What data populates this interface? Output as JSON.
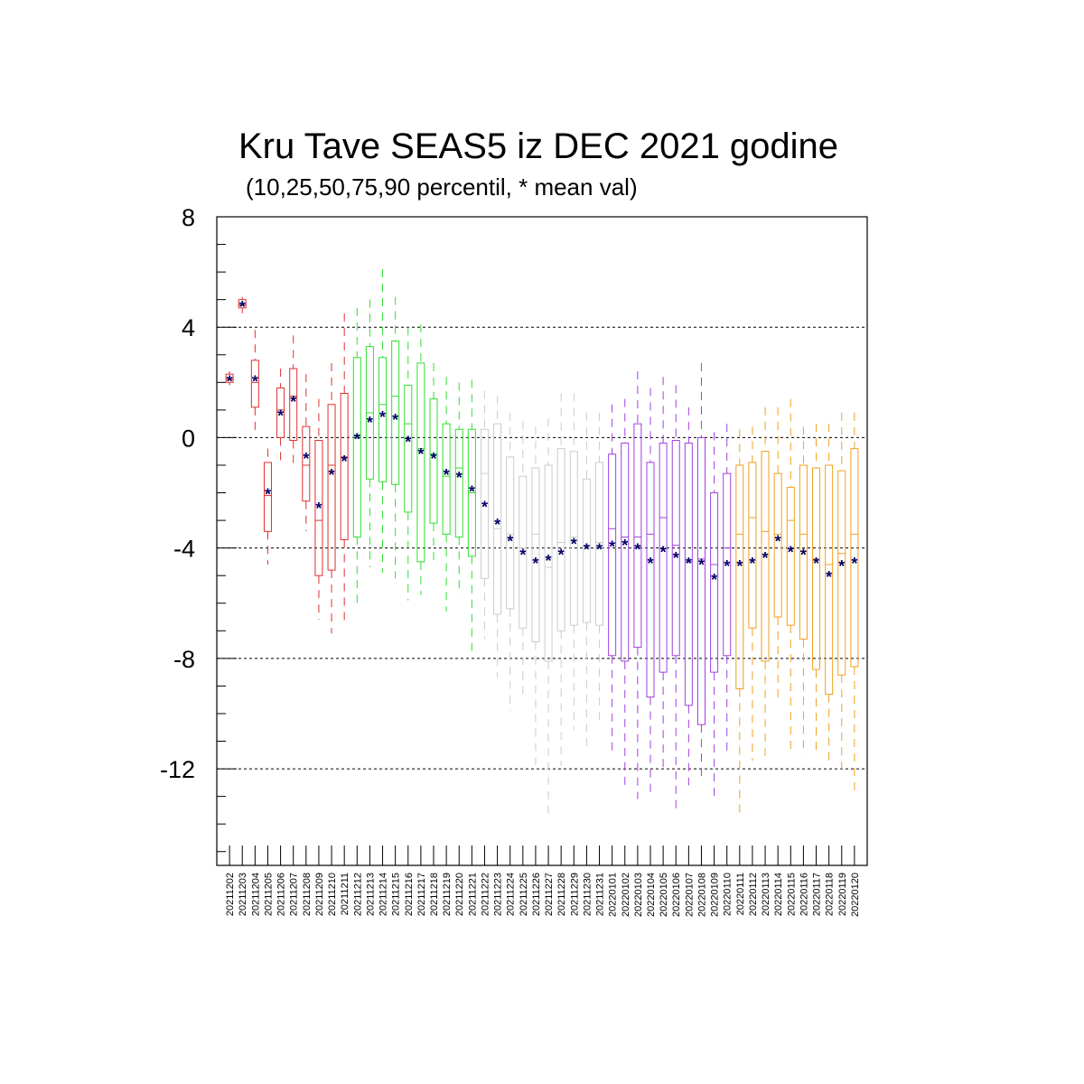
{
  "chart_data": {
    "type": "box",
    "title": "Kru Tave SEAS5 iz DEC 2021 godine",
    "subtitle": "(10,25,50,75,90 percentil, * mean val)",
    "ylim": [
      -15.5,
      8
    ],
    "yticks": [
      {
        "value": 8,
        "label": "8"
      },
      {
        "value": 4,
        "label": "4"
      },
      {
        "value": 0,
        "label": "0"
      },
      {
        "value": -4,
        "label": "-4"
      },
      {
        "value": -8,
        "label": "-8"
      },
      {
        "value": -12,
        "label": "-12"
      }
    ],
    "grid_y": [
      8,
      4,
      0,
      -4,
      -8,
      -12
    ],
    "colors": {
      "red": "#e03030",
      "green": "#33dd33",
      "gray": "#cccccc",
      "purple": "#a040e0",
      "orange": "#f0a020",
      "mean": "#000066"
    },
    "series": [
      {
        "x": "20211202",
        "color": "red",
        "p10": 1.9,
        "p25": 2.0,
        "p50": 2.1,
        "p75": 2.3,
        "p90": 2.4,
        "mean": 2.1
      },
      {
        "x": "20211203",
        "color": "red",
        "p10": 4.5,
        "p25": 4.7,
        "p50": 4.8,
        "p75": 5.0,
        "p90": 5.1,
        "mean": 4.8
      },
      {
        "x": "20211204",
        "color": "red",
        "p10": 0.1,
        "p25": 1.1,
        "p50": 2.0,
        "p75": 2.8,
        "p90": 3.9,
        "mean": 2.1
      },
      {
        "x": "20211205",
        "color": "red",
        "p10": -4.6,
        "p25": -3.4,
        "p50": -2.1,
        "p75": -0.9,
        "p90": -0.4,
        "mean": -2.0
      },
      {
        "x": "20211206",
        "color": "red",
        "p10": -0.9,
        "p25": 0.0,
        "p50": 1.0,
        "p75": 1.8,
        "p90": 2.5,
        "mean": 0.85
      },
      {
        "x": "20211207",
        "color": "red",
        "p10": -1.1,
        "p25": -0.1,
        "p50": 1.5,
        "p75": 2.5,
        "p90": 3.7,
        "mean": 1.35
      },
      {
        "x": "20211208",
        "color": "red",
        "p10": -3.4,
        "p25": -2.3,
        "p50": -1.0,
        "p75": 0.4,
        "p90": 2.3,
        "mean": -0.7
      },
      {
        "x": "20211209",
        "color": "red",
        "p10": -6.6,
        "p25": -5.0,
        "p50": -3.0,
        "p75": -0.1,
        "p90": 1.4,
        "mean": -2.5
      },
      {
        "x": "20211210",
        "color": "red",
        "p10": -7.1,
        "p25": -4.8,
        "p50": -1.0,
        "p75": 1.2,
        "p90": 2.7,
        "mean": -1.3
      },
      {
        "x": "20211211",
        "color": "red",
        "p10": -6.8,
        "p25": -3.7,
        "p50": -0.7,
        "p75": 1.6,
        "p90": 4.5,
        "mean": -0.8
      },
      {
        "x": "20211212",
        "color": "green",
        "p10": -6.0,
        "p25": -3.6,
        "p50": 0.1,
        "p75": 2.9,
        "p90": 4.7,
        "mean": 0.0
      },
      {
        "x": "20211213",
        "color": "green",
        "p10": -4.7,
        "p25": -1.5,
        "p50": 0.9,
        "p75": 3.3,
        "p90": 5.0,
        "mean": 0.6
      },
      {
        "x": "20211214",
        "color": "green",
        "p10": -4.9,
        "p25": -1.6,
        "p50": 1.2,
        "p75": 2.9,
        "p90": 6.1,
        "mean": 0.8
      },
      {
        "x": "20211215",
        "color": "green",
        "p10": -5.1,
        "p25": -1.7,
        "p50": 1.5,
        "p75": 3.5,
        "p90": 5.1,
        "mean": 0.7
      },
      {
        "x": "20211216",
        "color": "green",
        "p10": -5.9,
        "p25": -2.7,
        "p50": 0.5,
        "p75": 1.9,
        "p90": 4.0,
        "mean": -0.1
      },
      {
        "x": "20211217",
        "color": "green",
        "p10": -5.7,
        "p25": -4.5,
        "p50": -0.4,
        "p75": 2.7,
        "p90": 4.1,
        "mean": -0.55
      },
      {
        "x": "20211218",
        "color": "green",
        "p10": -4.6,
        "p25": -3.1,
        "p50": -0.6,
        "p75": 1.4,
        "p90": 2.7,
        "mean": -0.7
      },
      {
        "x": "20211219",
        "color": "green",
        "p10": -6.3,
        "p25": -3.5,
        "p50": -1.4,
        "p75": 0.5,
        "p90": 2.2,
        "mean": -1.3
      },
      {
        "x": "20211220",
        "color": "green",
        "p10": -5.7,
        "p25": -3.6,
        "p50": -1.1,
        "p75": 0.3,
        "p90": 2.0,
        "mean": -1.4
      },
      {
        "x": "20211221",
        "color": "green",
        "p10": -7.9,
        "p25": -4.3,
        "p50": -2.0,
        "p75": 0.3,
        "p90": 2.1,
        "mean": -1.9
      },
      {
        "x": "20211222",
        "color": "gray",
        "p10": -7.3,
        "p25": -5.1,
        "p50": -1.3,
        "p75": 0.3,
        "p90": 1.7,
        "mean": -2.45
      },
      {
        "x": "20211223",
        "color": "gray",
        "p10": -8.7,
        "p25": -6.4,
        "p50": -3.3,
        "p75": 0.5,
        "p90": 1.5,
        "mean": -3.1
      },
      {
        "x": "20211224",
        "color": "gray",
        "p10": -9.9,
        "p25": -6.2,
        "p50": -3.5,
        "p75": -0.7,
        "p90": 0.9,
        "mean": -3.7
      },
      {
        "x": "20211225",
        "color": "gray",
        "p10": -9.5,
        "p25": -6.9,
        "p50": -4.0,
        "p75": -1.4,
        "p90": 0.6,
        "mean": -4.2
      },
      {
        "x": "20211226",
        "color": "gray",
        "p10": -12.0,
        "p25": -7.4,
        "p50": -3.5,
        "p75": -1.1,
        "p90": 0.4,
        "mean": -4.5
      },
      {
        "x": "20211227",
        "color": "gray",
        "p10": -13.7,
        "p25": -8.1,
        "p50": -4.7,
        "p75": -1.0,
        "p90": 0.7,
        "mean": -4.4
      },
      {
        "x": "20211228",
        "color": "gray",
        "p10": -11.9,
        "p25": -7.0,
        "p50": -3.8,
        "p75": -0.4,
        "p90": 1.6,
        "mean": -4.2
      },
      {
        "x": "20211229",
        "color": "gray",
        "p10": -10.6,
        "p25": -6.8,
        "p50": -3.6,
        "p75": -0.5,
        "p90": 1.6,
        "mean": -3.8
      },
      {
        "x": "20211230",
        "color": "gray",
        "p10": -11.3,
        "p25": -6.7,
        "p50": -3.9,
        "p75": -1.5,
        "p90": 0.9,
        "mean": -4.0
      },
      {
        "x": "20211231",
        "color": "gray",
        "p10": -10.4,
        "p25": -6.8,
        "p50": -3.8,
        "p75": -0.9,
        "p90": 0.9,
        "mean": -4.0
      },
      {
        "x": "20220101",
        "color": "purple",
        "p10": -11.5,
        "p25": -7.9,
        "p50": -3.3,
        "p75": -0.6,
        "p90": 1.2,
        "mean": -3.9
      },
      {
        "x": "20220102",
        "color": "purple",
        "p10": -12.8,
        "p25": -8.1,
        "p50": -3.6,
        "p75": -0.2,
        "p90": 1.4,
        "mean": -3.85
      },
      {
        "x": "20220103",
        "color": "purple",
        "p10": -13.1,
        "p25": -7.6,
        "p50": -3.6,
        "p75": 0.5,
        "p90": 2.4,
        "mean": -4.0
      },
      {
        "x": "20220104",
        "color": "purple",
        "p10": -12.9,
        "p25": -9.4,
        "p50": -3.5,
        "p75": -0.9,
        "p90": 1.8,
        "mean": -4.5
      },
      {
        "x": "20220105",
        "color": "purple",
        "p10": -12.1,
        "p25": -8.5,
        "p50": -2.9,
        "p75": -0.2,
        "p90": 2.2,
        "mean": -4.1
      },
      {
        "x": "20220106",
        "color": "purple",
        "p10": -13.5,
        "p25": -7.9,
        "p50": -3.9,
        "p75": -0.1,
        "p90": 1.9,
        "mean": -4.3
      },
      {
        "x": "20220107",
        "color": "purple",
        "p10": -12.6,
        "p25": -9.7,
        "p50": -4.5,
        "p75": -0.2,
        "p90": 1.1,
        "mean": -4.5
      },
      {
        "x": "20220108",
        "color": "purple",
        "p10": -12.4,
        "p25": -10.4,
        "p50": -4.4,
        "p75": 0.0,
        "p90": 2.7,
        "mean": -4.55
      },
      {
        "x": "20220109",
        "color": "purple",
        "p10": -13.0,
        "p25": -8.5,
        "p50": -4.6,
        "p75": -2.0,
        "p90": 0.2,
        "mean": -5.1
      },
      {
        "x": "20220110",
        "color": "purple",
        "p10": -11.4,
        "p25": -7.9,
        "p50": -4.0,
        "p75": -1.3,
        "p90": 0.5,
        "mean": -4.6
      },
      {
        "x": "20220111",
        "color": "orange",
        "p10": -13.6,
        "p25": -9.1,
        "p50": -3.5,
        "p75": -1.0,
        "p90": 0.3,
        "mean": -4.6
      },
      {
        "x": "20220112",
        "color": "orange",
        "p10": -11.7,
        "p25": -6.9,
        "p50": -2.9,
        "p75": -0.9,
        "p90": 0.4,
        "mean": -4.5
      },
      {
        "x": "20220113",
        "color": "orange",
        "p10": -11.7,
        "p25": -8.1,
        "p50": -3.4,
        "p75": -0.5,
        "p90": 1.1,
        "mean": -4.3
      },
      {
        "x": "20220114",
        "color": "orange",
        "p10": -9.5,
        "p25": -6.5,
        "p50": -3.5,
        "p75": -1.3,
        "p90": 1.1,
        "mean": -3.7
      },
      {
        "x": "20220115",
        "color": "orange",
        "p10": -11.5,
        "p25": -6.8,
        "p50": -3.0,
        "p75": -1.8,
        "p90": 1.4,
        "mean": -4.1
      },
      {
        "x": "20220116",
        "color": "orange",
        "p10": -11.5,
        "p25": -7.3,
        "p50": -3.5,
        "p75": -1.0,
        "p90": 0.4,
        "mean": -4.2
      },
      {
        "x": "20220117",
        "color": "orange",
        "p10": -11.5,
        "p25": -8.4,
        "p50": -4.4,
        "p75": -1.1,
        "p90": 0.5,
        "mean": -4.5
      },
      {
        "x": "20220118",
        "color": "orange",
        "p10": -11.8,
        "p25": -9.3,
        "p50": -4.6,
        "p75": -1.0,
        "p90": 0.5,
        "mean": -5.0
      },
      {
        "x": "20220119",
        "color": "orange",
        "p10": -12.2,
        "p25": -8.6,
        "p50": -4.2,
        "p75": -1.2,
        "p90": 0.9,
        "mean": -4.6
      },
      {
        "x": "20220120",
        "color": "orange",
        "p10": -12.9,
        "p25": -8.3,
        "p50": -3.5,
        "p75": -0.4,
        "p90": 0.9,
        "mean": -4.5
      }
    ]
  }
}
